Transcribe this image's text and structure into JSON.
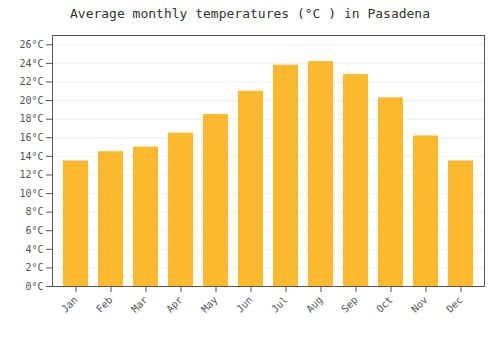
{
  "chart_data": {
    "type": "bar",
    "title": "Average monthly temperatures (°C ) in Pasadena",
    "categories": [
      "Jan",
      "Feb",
      "Mar",
      "Apr",
      "May",
      "Jun",
      "Jul",
      "Aug",
      "Sep",
      "Oct",
      "Nov",
      "Dec"
    ],
    "values": [
      13.5,
      14.5,
      15.0,
      16.5,
      18.5,
      21.0,
      23.8,
      24.2,
      22.8,
      20.3,
      16.2,
      13.5
    ],
    "color": "#FDB92E",
    "ylim": [
      0,
      27
    ],
    "yticks": [
      {
        "value": 0,
        "label": "0°C"
      },
      {
        "value": 2,
        "label": "2°C"
      },
      {
        "value": 4,
        "label": "4°C"
      },
      {
        "value": 6,
        "label": "6°C"
      },
      {
        "value": 8,
        "label": "8°C"
      },
      {
        "value": 10,
        "label": "10°C"
      },
      {
        "value": 12,
        "label": "12°C"
      },
      {
        "value": 14,
        "label": "14°C"
      },
      {
        "value": 16,
        "label": "16°C"
      },
      {
        "value": 18,
        "label": "18°C"
      },
      {
        "value": 20,
        "label": "20°C"
      },
      {
        "value": 22,
        "label": "22°C"
      },
      {
        "value": 24,
        "label": "24°C"
      },
      {
        "value": 26,
        "label": "26°C"
      }
    ],
    "grid": true
  }
}
